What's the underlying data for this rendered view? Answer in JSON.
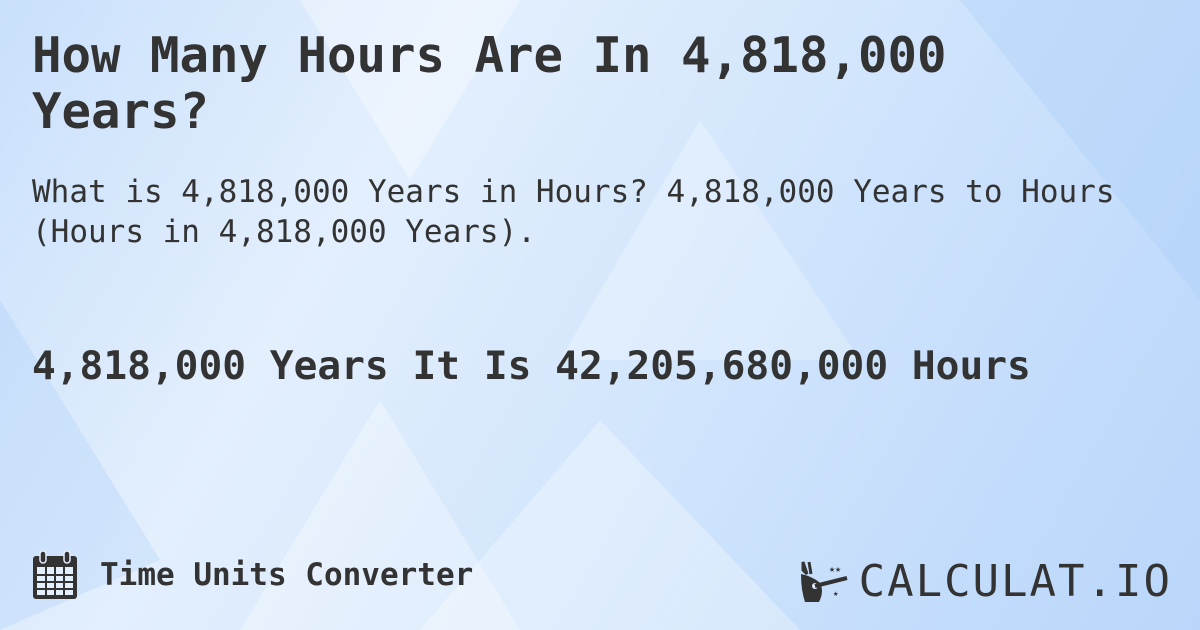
{
  "title": "How Many Hours Are In 4,818,000 Years?",
  "subtitle": "What is 4,818,000 Years in Hours? 4,818,000 Years to Hours (Hours in 4,818,000 Years).",
  "answer": "4,818,000 Years It Is 42,205,680,000 Hours",
  "footer": {
    "icon": "calendar-icon",
    "label": "Time Units Converter"
  },
  "logo": {
    "icon": "magic-hand-icon",
    "text": "CALCULAT.IO"
  }
}
